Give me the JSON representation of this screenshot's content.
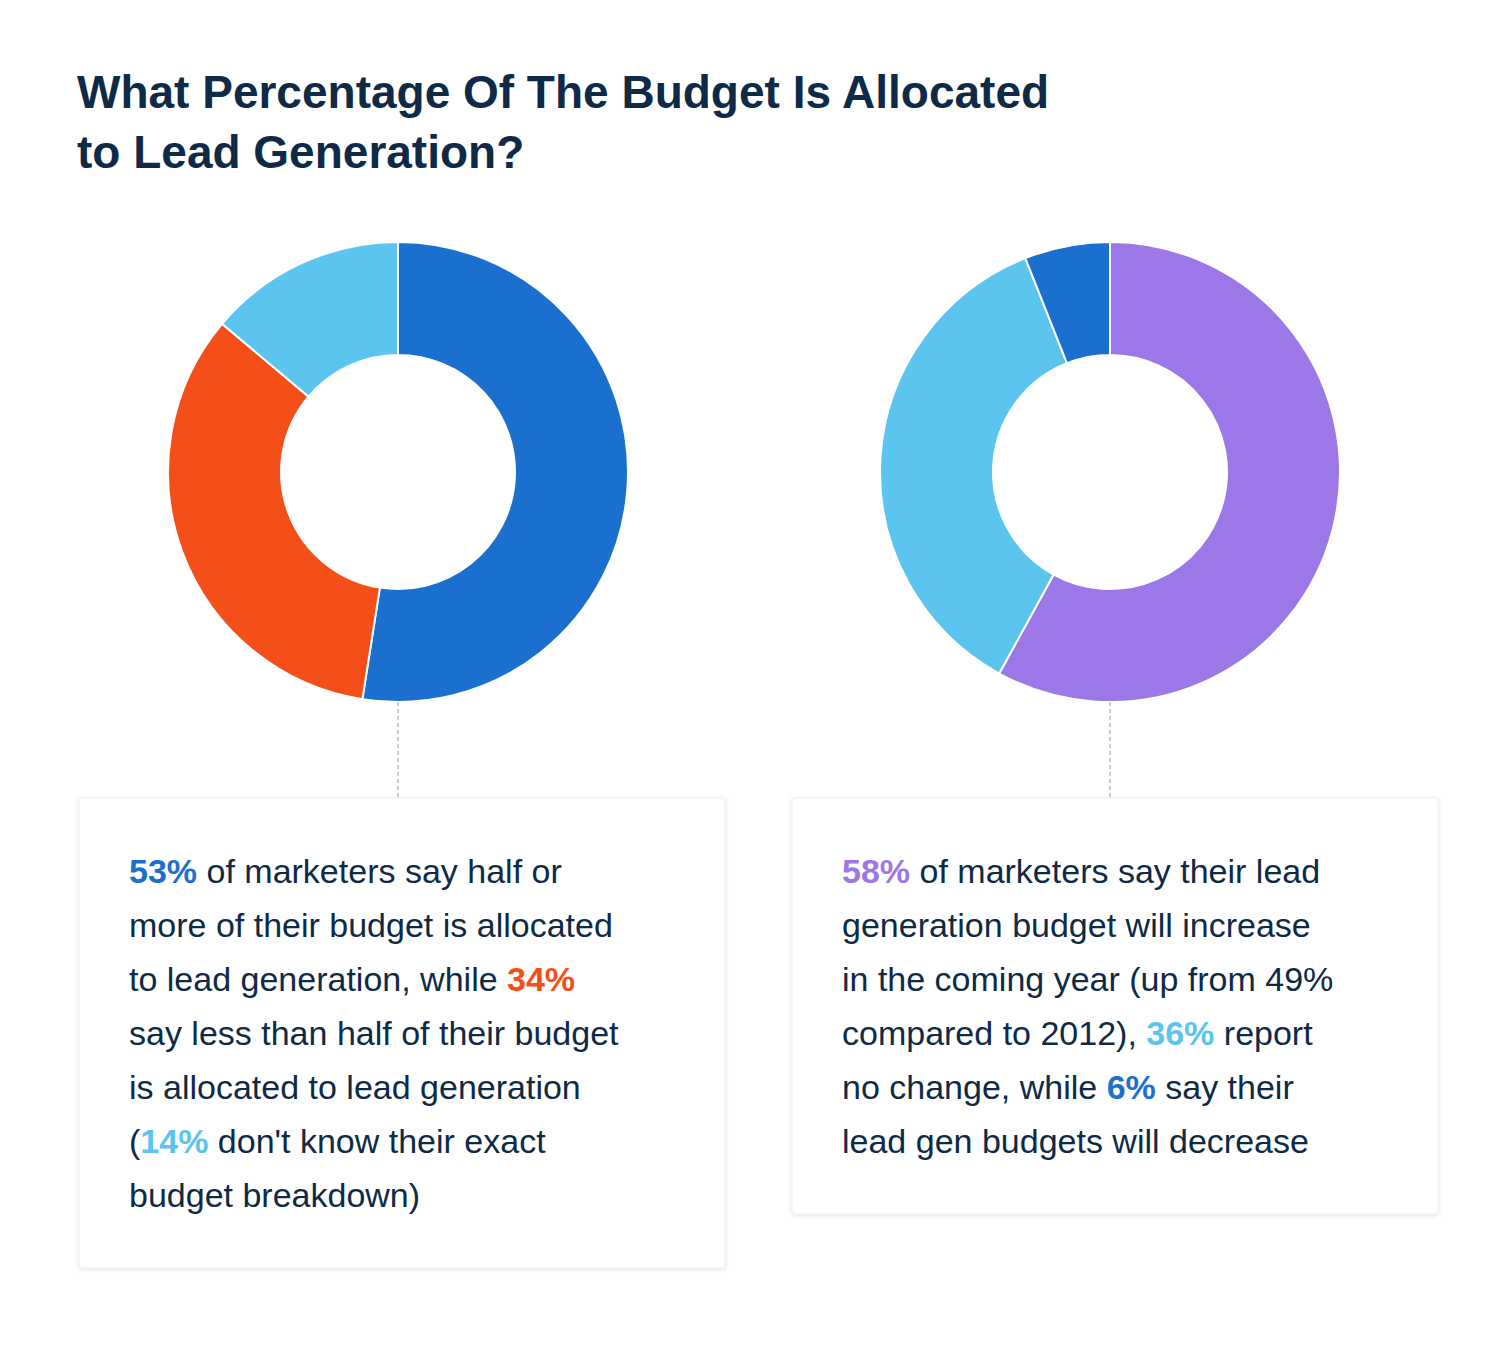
{
  "title": [
    "What Percentage Of The Budget Is Allocated",
    "to Lead Generation?"
  ],
  "chart_data": [
    {
      "type": "pie",
      "values": [
        53,
        34,
        14
      ],
      "colors": [
        "#1b6fcf",
        "#f44e19",
        "#5bc5f0"
      ],
      "caption": [
        [
          {
            "text": "53%",
            "color": "#1b6fcf"
          },
          {
            "text": " of marketers say half or"
          }
        ],
        [
          {
            "text": "more of their budget is allocated"
          }
        ],
        [
          {
            "text": "to lead generation, while "
          },
          {
            "text": "34%",
            "color": "#f44e19"
          }
        ],
        [
          {
            "text": "say less than half of their budget"
          }
        ],
        [
          {
            "text": "is allocated to lead generation"
          }
        ],
        [
          {
            "text": "("
          },
          {
            "text": "14%",
            "color": "#5bc5f0"
          },
          {
            "text": " don't know their exact"
          }
        ],
        [
          {
            "text": "budget breakdown)"
          }
        ]
      ]
    },
    {
      "type": "pie",
      "values": [
        58,
        36,
        6
      ],
      "colors": [
        "#9b77e8",
        "#5bc5f0",
        "#1b6fcf"
      ],
      "caption": [
        [
          {
            "text": "58%",
            "color": "#9b77e8"
          },
          {
            "text": " of marketers say their lead"
          }
        ],
        [
          {
            "text": "generation budget will increase"
          }
        ],
        [
          {
            "text": "in the coming year (up from 49%"
          }
        ],
        [
          {
            "text": "compared to 2012), "
          },
          {
            "text": "36%",
            "color": "#5bc5f0"
          },
          {
            "text": " report"
          }
        ],
        [
          {
            "text": "no change, while "
          },
          {
            "text": "6%",
            "color": "#1b6fcf"
          },
          {
            "text": " say their"
          }
        ],
        [
          {
            "text": "lead gen budgets will decrease"
          }
        ]
      ]
    }
  ]
}
